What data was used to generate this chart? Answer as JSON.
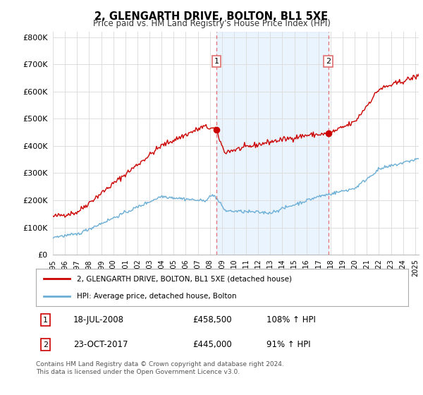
{
  "title": "2, GLENGARTH DRIVE, BOLTON, BL1 5XE",
  "subtitle": "Price paid vs. HM Land Registry's House Price Index (HPI)",
  "ylabel_ticks": [
    "£0",
    "£100K",
    "£200K",
    "£300K",
    "£400K",
    "£500K",
    "£600K",
    "£700K",
    "£800K"
  ],
  "ytick_values": [
    0,
    100000,
    200000,
    300000,
    400000,
    500000,
    600000,
    700000,
    800000
  ],
  "ylim": [
    0,
    820000
  ],
  "xlim_start": 1995.0,
  "xlim_end": 2025.3,
  "transaction1_x": 2008.54,
  "transaction1_y": 458500,
  "transaction2_x": 2017.81,
  "transaction2_y": 445000,
  "hpi_color": "#6baed6",
  "price_color": "#cc0000",
  "dashed_color": "#e07070",
  "shade_color": "#ddeeff",
  "legend_house_label": "2, GLENGARTH DRIVE, BOLTON, BL1 5XE (detached house)",
  "legend_hpi_label": "HPI: Average price, detached house, Bolton",
  "row1_num": "1",
  "row1_date": "18-JUL-2008",
  "row1_price": "£458,500",
  "row1_hpi": "108% ↑ HPI",
  "row2_num": "2",
  "row2_date": "23-OCT-2017",
  "row2_price": "£445,000",
  "row2_hpi": "91% ↑ HPI",
  "footer": "Contains HM Land Registry data © Crown copyright and database right 2024.\nThis data is licensed under the Open Government Licence v3.0.",
  "background_color": "#ffffff",
  "grid_color": "#dddddd"
}
